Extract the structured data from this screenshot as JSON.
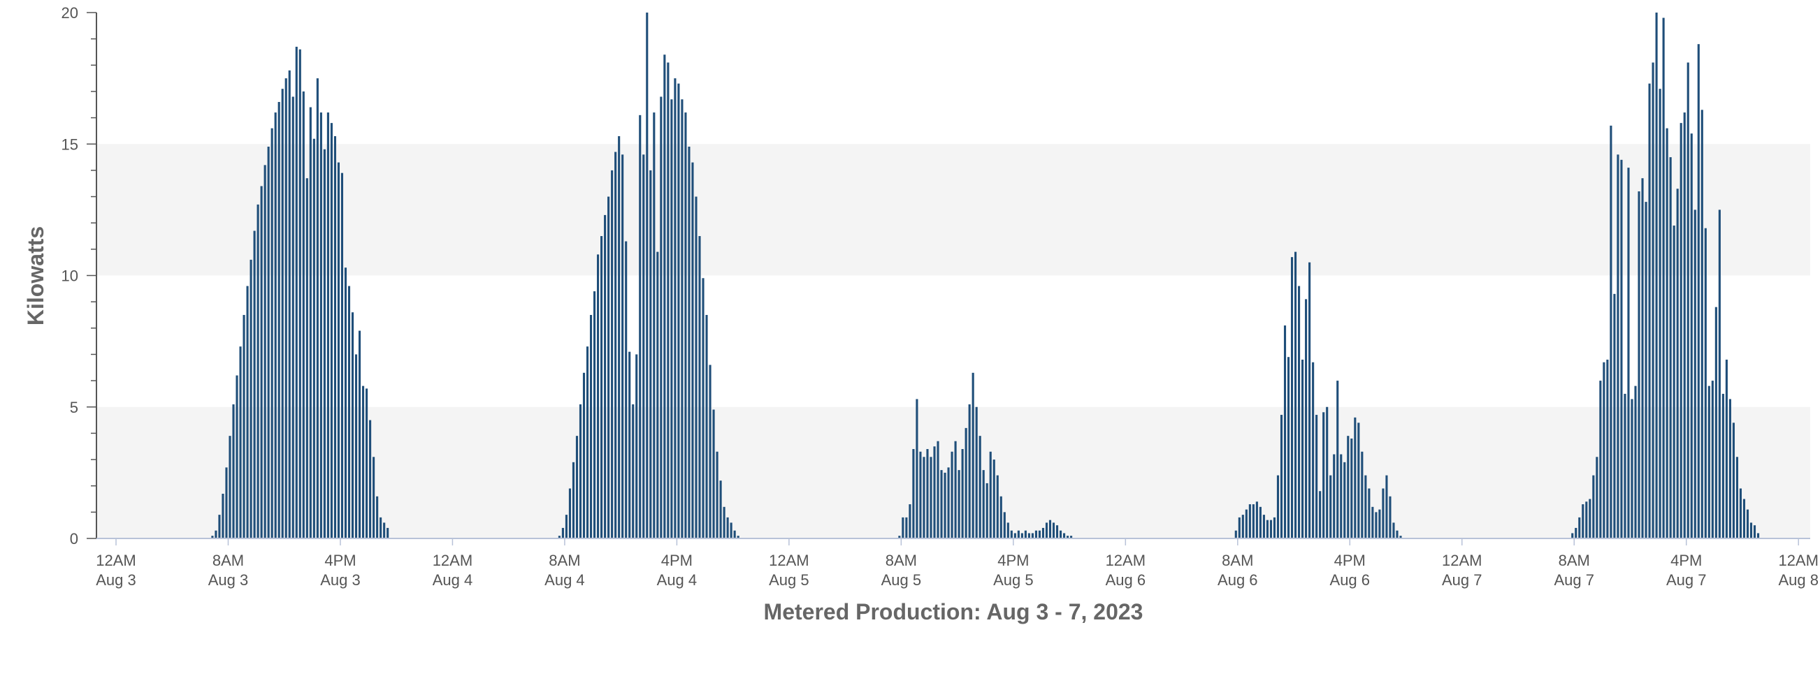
{
  "chart_data": {
    "type": "bar",
    "title": "Metered Production: Aug 3 - 7, 2023",
    "xlabel": "Metered Production: Aug 3 - 7, 2023",
    "ylabel": "Kilowatts",
    "ylim": [
      0,
      20
    ],
    "y_ticks": [
      "0",
      "5",
      "10",
      "15",
      "20"
    ],
    "x_range_hours": [
      0,
      96
    ],
    "x_tick_labels": [
      {
        "time": "12AM",
        "date": "Aug 3"
      },
      {
        "time": "8AM",
        "date": "Aug 3"
      },
      {
        "time": "4PM",
        "date": "Aug 3"
      },
      {
        "time": "12AM",
        "date": "Aug 4"
      },
      {
        "time": "8AM",
        "date": "Aug 4"
      },
      {
        "time": "4PM",
        "date": "Aug 4"
      },
      {
        "time": "12AM",
        "date": "Aug 5"
      },
      {
        "time": "8AM",
        "date": "Aug 5"
      },
      {
        "time": "4PM",
        "date": "Aug 5"
      },
      {
        "time": "12AM",
        "date": "Aug 6"
      },
      {
        "time": "8AM",
        "date": "Aug 6"
      },
      {
        "time": "4PM",
        "date": "Aug 6"
      },
      {
        "time": "12AM",
        "date": "Aug 7"
      },
      {
        "time": "8AM",
        "date": "Aug 7"
      },
      {
        "time": "4PM",
        "date": "Aug 7"
      },
      {
        "time": "12AM",
        "date": "Aug 8"
      }
    ],
    "grid_bands": "alternating gray bands",
    "bar_color": "#1f4e79",
    "band_color": "#f4f4f4",
    "interval_minutes": 15,
    "series": [
      {
        "date": "Aug 3",
        "start": "6:45AM",
        "values": [
          0.1,
          0.3,
          0.9,
          1.7,
          2.7,
          3.9,
          5.1,
          6.2,
          7.3,
          8.5,
          9.6,
          10.6,
          11.7,
          12.7,
          13.4,
          14.2,
          14.9,
          15.6,
          16.2,
          16.6,
          17.1,
          17.5,
          17.8,
          16.8,
          18.7,
          18.6,
          17.0,
          13.7,
          16.4,
          15.2,
          17.5,
          16.2,
          14.8,
          16.2,
          15.8,
          15.3,
          14.3,
          13.9,
          10.3,
          9.6,
          8.6,
          7.0,
          7.9,
          5.8,
          5.7,
          4.5,
          3.1,
          1.6,
          0.8,
          0.6,
          0.4
        ]
      },
      {
        "date": "Aug 4",
        "start": "7:30AM",
        "values": [
          0.1,
          0.4,
          0.9,
          1.9,
          2.9,
          3.9,
          5.1,
          6.3,
          7.3,
          8.5,
          9.4,
          10.8,
          11.5,
          12.3,
          13.0,
          14.0,
          14.7,
          15.3,
          14.6,
          11.3,
          7.1,
          5.1,
          7.0,
          16.1,
          14.6,
          20.0,
          14.0,
          16.2,
          10.9,
          16.8,
          18.4,
          18.1,
          16.7,
          17.5,
          17.3,
          16.7,
          16.2,
          14.9,
          14.3,
          13.0,
          11.5,
          9.9,
          8.5,
          6.6,
          4.9,
          3.3,
          2.2,
          1.2,
          0.8,
          0.6,
          0.3,
          0.1
        ]
      },
      {
        "date": "Aug 5",
        "start": "7:45AM",
        "values": [
          0.1,
          0.8,
          0.8,
          1.3,
          3.4,
          5.3,
          3.3,
          3.1,
          3.4,
          3.1,
          3.5,
          3.7,
          2.6,
          2.5,
          2.7,
          3.3,
          3.7,
          2.6,
          3.4,
          4.2,
          5.1,
          6.3,
          5.0,
          3.9,
          2.6,
          2.1,
          3.3,
          3.0,
          2.4,
          1.6,
          1.0,
          0.6,
          0.3,
          0.2,
          0.3,
          0.2,
          0.3,
          0.2,
          0.2,
          0.3,
          0.3,
          0.4,
          0.6,
          0.7,
          0.6,
          0.5,
          0.3,
          0.2,
          0.1,
          0.1
        ]
      },
      {
        "date": "Aug 6",
        "start": "7:45AM",
        "values": [
          0.3,
          0.8,
          0.9,
          1.1,
          1.3,
          1.3,
          1.4,
          1.2,
          0.9,
          0.7,
          0.7,
          0.8,
          2.4,
          4.7,
          8.1,
          6.9,
          10.7,
          10.9,
          9.6,
          6.8,
          9.1,
          10.5,
          6.7,
          4.7,
          1.8,
          4.8,
          5.0,
          2.4,
          3.2,
          6.0,
          3.2,
          2.9,
          3.9,
          3.8,
          4.6,
          4.4,
          3.3,
          2.4,
          1.9,
          1.2,
          1.0,
          1.1,
          1.9,
          2.4,
          1.6,
          0.6,
          0.3,
          0.1
        ]
      },
      {
        "date": "Aug 7",
        "start": "7:45AM",
        "values": [
          0.2,
          0.4,
          0.8,
          1.3,
          1.4,
          1.5,
          2.4,
          3.1,
          6.0,
          6.7,
          6.8,
          15.7,
          9.3,
          14.6,
          14.4,
          5.5,
          14.1,
          5.3,
          5.8,
          13.2,
          13.7,
          12.8,
          17.3,
          18.1,
          20.0,
          17.1,
          19.8,
          15.6,
          14.5,
          11.9,
          13.3,
          15.8,
          16.2,
          18.1,
          15.4,
          12.5,
          18.8,
          16.3,
          11.8,
          5.8,
          6.0,
          8.8,
          12.5,
          5.5,
          6.8,
          5.3,
          4.4,
          3.1,
          1.9,
          1.5,
          1.1,
          0.6,
          0.5,
          0.2
        ]
      }
    ]
  }
}
